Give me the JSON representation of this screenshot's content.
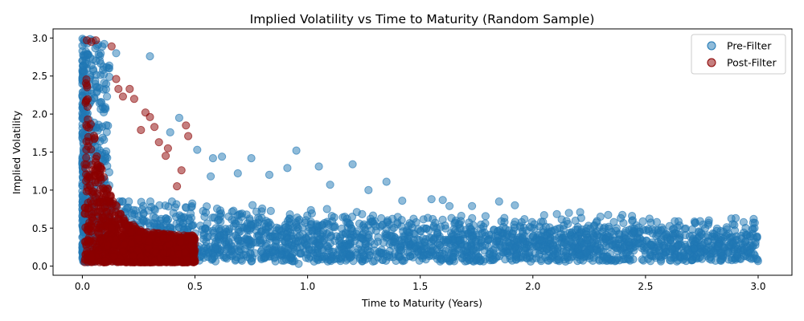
{
  "chart_data": {
    "type": "scatter",
    "title": "Implied Volatility vs Time to Maturity (Random Sample)",
    "xlabel": "Time to Maturity (Years)",
    "ylabel": "Implied Volatility",
    "xlim": [
      -0.13,
      3.15
    ],
    "ylim": [
      -0.12,
      3.12
    ],
    "xticks": [
      "0.0",
      "0.5",
      "1.0",
      "1.5",
      "2.0",
      "2.5",
      "3.0"
    ],
    "yticks": [
      "0.0",
      "0.5",
      "1.0",
      "1.5",
      "2.0",
      "2.5",
      "3.0"
    ],
    "grid": false,
    "legend_position": "top-right",
    "series": [
      {
        "name": "Pre-Filter",
        "color": "#1f77b4",
        "marker": "circle",
        "description": "dense band of points over x 0.0–3.0, y mostly 0.05–0.8; near x=0 values reach 3.0",
        "x": [
          0.3,
          0.15,
          0.43,
          0.39,
          0.51,
          0.62,
          0.58,
          0.75,
          0.95,
          1.05,
          1.2,
          0.91,
          1.35,
          1.27,
          0.83,
          0.69,
          0.57,
          1.1,
          1.42,
          1.6,
          1.63,
          1.73,
          1.85,
          1.92,
          2.05,
          2.16,
          2.3,
          2.44,
          2.63,
          2.78,
          2.9,
          2.98,
          1.55,
          0.96,
          2.21,
          2.55
        ],
        "y": [
          2.76,
          2.8,
          1.95,
          1.76,
          1.53,
          1.44,
          1.42,
          1.42,
          1.52,
          1.31,
          1.34,
          1.29,
          1.11,
          1.0,
          1.2,
          1.22,
          1.18,
          1.07,
          0.86,
          0.87,
          0.79,
          0.79,
          0.85,
          0.8,
          0.67,
          0.7,
          0.65,
          0.66,
          0.59,
          0.57,
          0.63,
          0.62,
          0.88,
          0.03,
          0.71,
          0.58
        ]
      },
      {
        "name": "Post-Filter",
        "color": "#8b0000",
        "marker": "circle",
        "description": "points restricted to x 0.0–0.5, spanning y 0.05–3.0 with density near low maturities",
        "x": [
          0.02,
          0.04,
          0.06,
          0.13,
          0.21,
          0.23,
          0.3,
          0.32,
          0.46,
          0.47,
          0.44,
          0.37,
          0.38,
          0.26,
          0.18,
          0.15,
          0.16,
          0.28,
          0.34,
          0.42
        ],
        "y": [
          2.97,
          2.95,
          2.97,
          2.89,
          2.33,
          2.2,
          1.96,
          1.83,
          1.85,
          1.71,
          1.26,
          1.45,
          1.55,
          1.79,
          2.23,
          2.46,
          2.33,
          2.02,
          1.63,
          1.05
        ]
      }
    ]
  }
}
